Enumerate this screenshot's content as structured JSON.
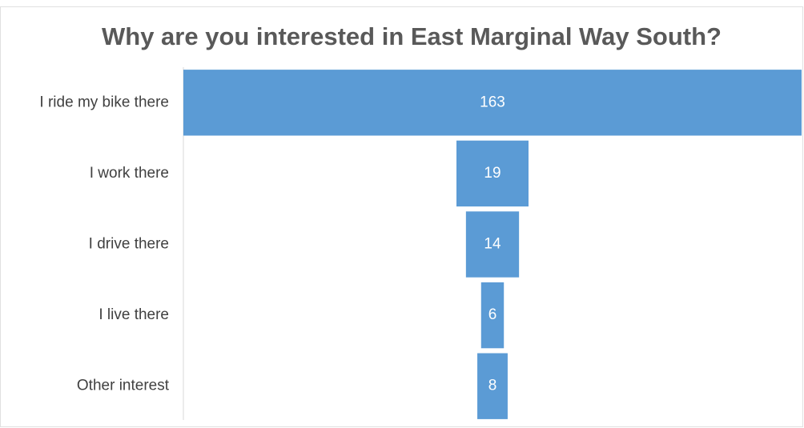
{
  "chart_data": {
    "type": "funnel",
    "title": "Why are you interested in East Marginal Way South?",
    "categories": [
      "I ride my bike there",
      "I work there",
      "I drive there",
      "I live there",
      "Other interest"
    ],
    "values": [
      163,
      19,
      14,
      6,
      8
    ],
    "color": "#5b9bd5"
  }
}
